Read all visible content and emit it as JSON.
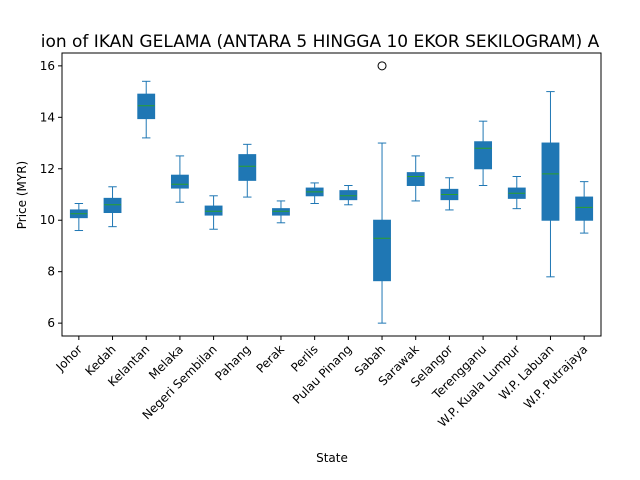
{
  "chart_data": {
    "type": "box",
    "title": "ion of IKAN GELAMA (ANTARA 5 HINGGA 10 EKOR SEKILOGRAM) A",
    "xlabel": "State",
    "ylabel": "Price (MYR)",
    "ylim": [
      5.5,
      16.5
    ],
    "yticks": [
      6,
      8,
      10,
      12,
      14,
      16
    ],
    "grid": false,
    "box_color": "#1f77b4",
    "median_color": "#2ca02c",
    "categories": [
      "Johor",
      "Kedah",
      "Kelantan",
      "Melaka",
      "Negeri Sembilan",
      "Pahang",
      "Perak",
      "Perlis",
      "Pulau Pinang",
      "Sabah",
      "Sarawak",
      "Selangor",
      "Terengganu",
      "W.P. Kuala Lumpur",
      "W.P. Labuan",
      "W.P. Putrajaya"
    ],
    "boxes": [
      {
        "whislo": 9.6,
        "q1": 10.1,
        "med": 10.25,
        "q3": 10.4,
        "whishi": 10.65,
        "fliers": []
      },
      {
        "whislo": 9.75,
        "q1": 10.3,
        "med": 10.6,
        "q3": 10.85,
        "whishi": 11.3,
        "fliers": []
      },
      {
        "whislo": 13.2,
        "q1": 13.95,
        "med": 14.45,
        "q3": 14.9,
        "whishi": 15.4,
        "fliers": []
      },
      {
        "whislo": 10.7,
        "q1": 11.25,
        "med": 11.4,
        "q3": 11.75,
        "whishi": 12.5,
        "fliers": []
      },
      {
        "whislo": 9.65,
        "q1": 10.2,
        "med": 10.35,
        "q3": 10.55,
        "whishi": 10.95,
        "fliers": []
      },
      {
        "whislo": 10.9,
        "q1": 11.55,
        "med": 12.1,
        "q3": 12.55,
        "whishi": 12.95,
        "fliers": []
      },
      {
        "whislo": 9.9,
        "q1": 10.2,
        "med": 10.35,
        "q3": 10.45,
        "whishi": 10.75,
        "fliers": []
      },
      {
        "whislo": 10.65,
        "q1": 10.95,
        "med": 11.1,
        "q3": 11.25,
        "whishi": 11.45,
        "fliers": []
      },
      {
        "whislo": 10.6,
        "q1": 10.8,
        "med": 10.95,
        "q3": 11.15,
        "whishi": 11.35,
        "fliers": []
      },
      {
        "whislo": 6.0,
        "q1": 7.65,
        "med": 9.3,
        "q3": 10.0,
        "whishi": 13.0,
        "fliers": [
          16.0
        ]
      },
      {
        "whislo": 10.75,
        "q1": 11.35,
        "med": 11.7,
        "q3": 11.85,
        "whishi": 12.5,
        "fliers": []
      },
      {
        "whislo": 10.4,
        "q1": 10.8,
        "med": 11.0,
        "q3": 11.2,
        "whishi": 11.65,
        "fliers": []
      },
      {
        "whislo": 11.35,
        "q1": 12.0,
        "med": 12.8,
        "q3": 13.05,
        "whishi": 13.85,
        "fliers": []
      },
      {
        "whislo": 10.45,
        "q1": 10.85,
        "med": 11.05,
        "q3": 11.25,
        "whishi": 11.7,
        "fliers": []
      },
      {
        "whislo": 7.8,
        "q1": 10.0,
        "med": 11.8,
        "q3": 13.0,
        "whishi": 15.0,
        "fliers": []
      },
      {
        "whislo": 9.5,
        "q1": 10.0,
        "med": 10.5,
        "q3": 10.9,
        "whishi": 11.5,
        "fliers": []
      }
    ]
  }
}
